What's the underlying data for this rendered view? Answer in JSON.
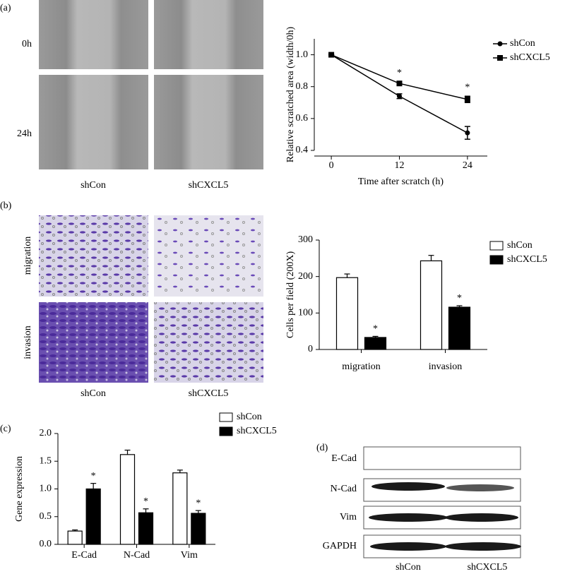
{
  "panel_a": {
    "label": "(a)",
    "row_labels": [
      "0h",
      "24h"
    ],
    "col_labels": [
      "shCon",
      "shCXCL5"
    ]
  },
  "panel_b": {
    "label": "(b)",
    "row_labels": [
      "migration",
      "invasion"
    ],
    "col_labels": [
      "shCon",
      "shCXCL5"
    ]
  },
  "panel_c": {
    "label": "(c)"
  },
  "panel_d": {
    "label": "(d)",
    "row_labels": [
      "E-Cad",
      "N-Cad",
      "Vim",
      "GAPDH"
    ],
    "col_labels": [
      "shCon",
      "shCXCL5"
    ]
  },
  "chart_data": [
    {
      "type": "line",
      "x_label": "Time after scratch (h)",
      "y_label": "Relative scratched area (width/0h)",
      "x": [
        0,
        12,
        24
      ],
      "xlim": [
        -3,
        27.5
      ],
      "xticks": [
        0,
        12,
        24
      ],
      "ylim": [
        0.4,
        1.1
      ],
      "yticks": [
        0.4,
        0.6,
        0.8,
        {
          "value": 1,
          "label": "1.0"
        }
      ],
      "legend": "top-right-outside",
      "series": [
        {
          "name": "shCon",
          "color": "#000000",
          "marker": "circle",
          "values": [
            1.0,
            0.74,
            0.51
          ],
          "errors": [
            0,
            0.015,
            0.04
          ],
          "annotations": [
            null,
            null,
            null
          ]
        },
        {
          "name": "shCXCL5",
          "color": "#000000",
          "marker": "square",
          "values": [
            1.0,
            0.82,
            0.72
          ],
          "errors": [
            0,
            0.01,
            0.02
          ],
          "annotations": [
            null,
            "*",
            "*"
          ]
        }
      ]
    },
    {
      "type": "bar",
      "y_label": "Cells per field (200X)",
      "categories": [
        "migration",
        "invasion"
      ],
      "ylim": [
        0,
        300
      ],
      "yticks": [
        0,
        100,
        200,
        300
      ],
      "legend": "top-right-outside",
      "series": [
        {
          "name": "shCon",
          "color": "#ffffff",
          "values": [
            197,
            243
          ],
          "errors": [
            10,
            15
          ],
          "annotations": [
            null,
            null
          ]
        },
        {
          "name": "shCXCL5",
          "color": "#000000",
          "values": [
            33,
            116
          ],
          "errors": [
            3,
            4
          ],
          "annotations": [
            "*",
            "*"
          ]
        }
      ]
    },
    {
      "type": "bar",
      "y_label": "Gene expression",
      "categories": [
        "E-Cad",
        "N-Cad",
        "Vim"
      ],
      "ylim": [
        0,
        2
      ],
      "yticks": [
        {
          "value": 0,
          "label": "0.0"
        },
        0.5,
        {
          "value": 1,
          "label": "1.0"
        },
        1.5,
        {
          "value": 2,
          "label": "2.0"
        }
      ],
      "legend": "top-right-outside",
      "series": [
        {
          "name": "shCon",
          "color": "#ffffff",
          "values": [
            0.24,
            1.62,
            1.29
          ],
          "errors": [
            0.02,
            0.08,
            0.05
          ],
          "annotations": [
            null,
            null,
            null
          ]
        },
        {
          "name": "shCXCL5",
          "color": "#000000",
          "values": [
            1.0,
            0.57,
            0.56
          ],
          "errors": [
            0.1,
            0.07,
            0.05
          ],
          "annotations": [
            "*",
            "*",
            "*"
          ]
        }
      ]
    }
  ]
}
